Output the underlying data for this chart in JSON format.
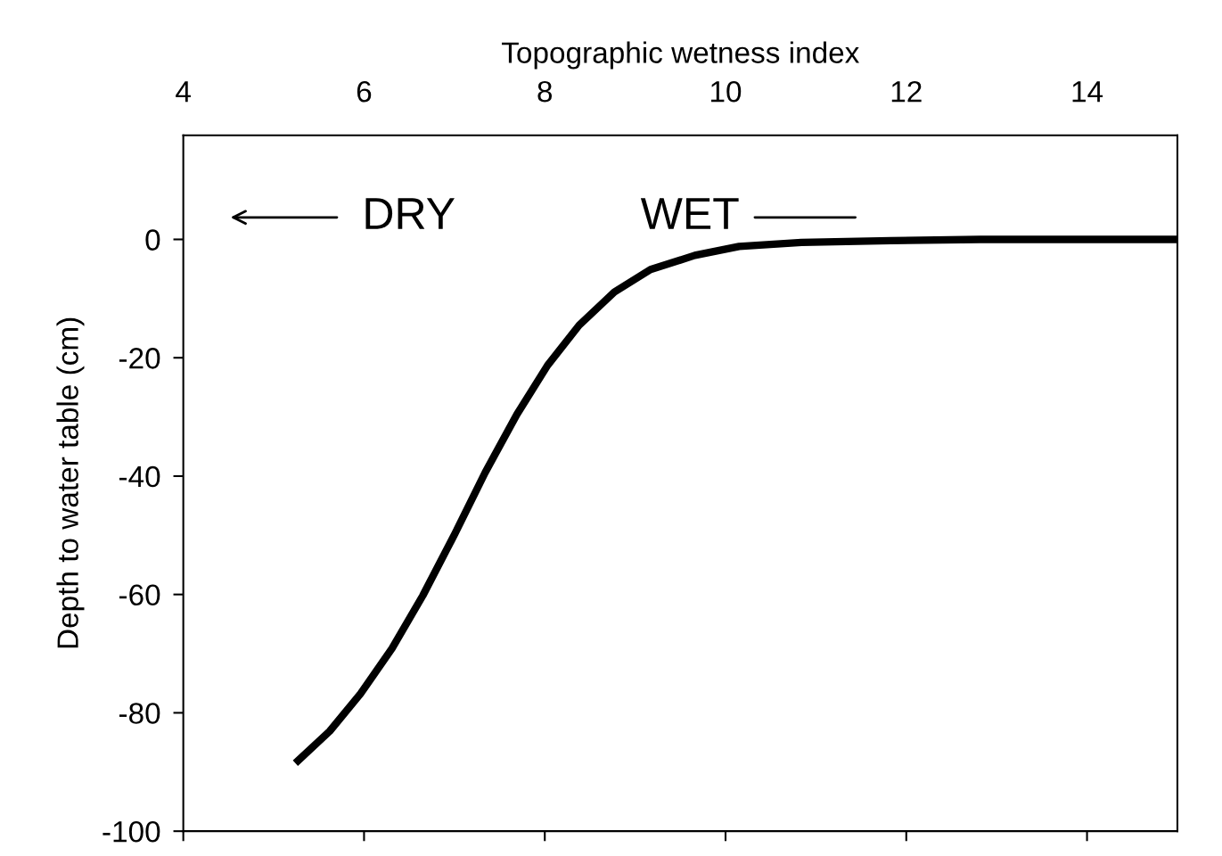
{
  "chart_data": {
    "type": "line",
    "xlabel": "Topographic wetness index",
    "ylabel": "Depth to water table (cm)",
    "x": [
      5.24,
      5.62,
      5.96,
      6.31,
      6.65,
      7.0,
      7.34,
      7.69,
      8.03,
      8.38,
      8.77,
      9.17,
      9.66,
      10.15,
      10.84,
      11.83,
      12.82,
      15.0
    ],
    "series": [
      {
        "color": "#000000",
        "values": [
          -88.5,
          -83.1,
          -76.8,
          -69.1,
          -60.2,
          -49.9,
          -39.4,
          -29.6,
          -21.3,
          -14.5,
          -8.9,
          -5.1,
          -2.7,
          -1.2,
          -0.5,
          -0.2,
          0,
          0
        ]
      }
    ],
    "xlim": [
      4,
      15
    ],
    "xticks": [
      4,
      6,
      8,
      10,
      12,
      14
    ],
    "ylim": [
      -100,
      17.6
    ],
    "yticks": [
      -100,
      -80,
      -60,
      -40,
      -20,
      0
    ],
    "annotations": [
      "DRY",
      "WET"
    ]
  }
}
